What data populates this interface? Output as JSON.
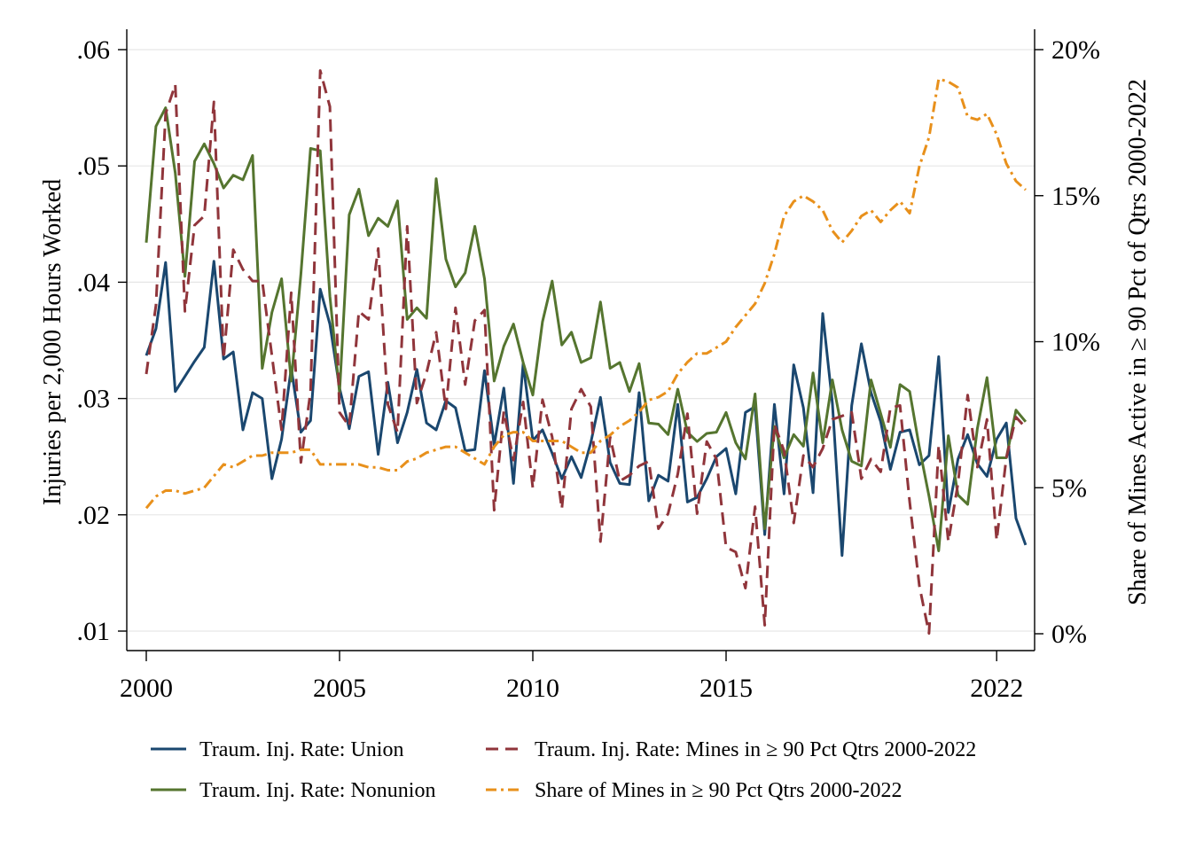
{
  "chart_data": {
    "type": "line",
    "title": "",
    "xlabel": "",
    "ylabel": "Injuries per 2,000 Hours Worked",
    "y2label": "Share of Mines Active in ≥ 90 Pct of Qtrs 2000-2022",
    "grid": true,
    "legend_position": "bottom",
    "xlim": [
      2000,
      2022.75
    ],
    "ylim": [
      0.0085,
      0.0615
    ],
    "y2lim": [
      0,
      0.2
    ],
    "x_ticks": [
      {
        "value": 2000,
        "label": "2000"
      },
      {
        "value": 2005,
        "label": "2005"
      },
      {
        "value": 2010,
        "label": "2010"
      },
      {
        "value": 2015,
        "label": "2015"
      },
      {
        "value": 2022,
        "label": "2022"
      }
    ],
    "y_ticks": [
      {
        "value": 0.01,
        "label": ".01"
      },
      {
        "value": 0.02,
        "label": ".02"
      },
      {
        "value": 0.03,
        "label": ".03"
      },
      {
        "value": 0.04,
        "label": ".04"
      },
      {
        "value": 0.05,
        "label": ".05"
      },
      {
        "value": 0.06,
        "label": ".06"
      }
    ],
    "y2_ticks": [
      {
        "value": 0.0,
        "label": "0%"
      },
      {
        "value": 0.05,
        "label": "5%"
      },
      {
        "value": 0.1,
        "label": "10%"
      },
      {
        "value": 0.15,
        "label": "15%"
      },
      {
        "value": 0.2,
        "label": "20%"
      }
    ],
    "x": [
      2000.0,
      2000.25,
      2000.5,
      2000.75,
      2001.0,
      2001.25,
      2001.5,
      2001.75,
      2002.0,
      2002.25,
      2002.5,
      2002.75,
      2003.0,
      2003.25,
      2003.5,
      2003.75,
      2004.0,
      2004.25,
      2004.5,
      2004.75,
      2005.0,
      2005.25,
      2005.5,
      2005.75,
      2006.0,
      2006.25,
      2006.5,
      2006.75,
      2007.0,
      2007.25,
      2007.5,
      2007.75,
      2008.0,
      2008.25,
      2008.5,
      2008.75,
      2009.0,
      2009.25,
      2009.5,
      2009.75,
      2010.0,
      2010.25,
      2010.5,
      2010.75,
      2011.0,
      2011.25,
      2011.5,
      2011.75,
      2012.0,
      2012.25,
      2012.5,
      2012.75,
      2013.0,
      2013.25,
      2013.5,
      2013.75,
      2014.0,
      2014.25,
      2014.5,
      2014.75,
      2015.0,
      2015.25,
      2015.5,
      2015.75,
      2016.0,
      2016.25,
      2016.5,
      2016.75,
      2017.0,
      2017.25,
      2017.5,
      2017.75,
      2018.0,
      2018.25,
      2018.5,
      2018.75,
      2019.0,
      2019.25,
      2019.5,
      2019.75,
      2020.0,
      2020.25,
      2020.5,
      2020.75,
      2021.0,
      2021.25,
      2021.5,
      2021.75,
      2022.0,
      2022.25,
      2022.5,
      2022.75
    ],
    "series": [
      {
        "name": "Traum. Inj. Rate: Union",
        "axis": "left",
        "color": "#1a476f",
        "dash": "solid",
        "values": [
          0.0337,
          0.036,
          0.0417,
          0.0306,
          0.0319,
          0.0332,
          0.0344,
          0.0418,
          0.0334,
          0.034,
          0.0273,
          0.0305,
          0.03,
          0.0231,
          0.0265,
          0.0326,
          0.0271,
          0.0281,
          0.0394,
          0.0364,
          0.0309,
          0.0274,
          0.0319,
          0.0323,
          0.0252,
          0.0314,
          0.0262,
          0.0288,
          0.0325,
          0.0279,
          0.0273,
          0.0298,
          0.0292,
          0.0255,
          0.0256,
          0.0324,
          0.026,
          0.0309,
          0.0227,
          0.033,
          0.0264,
          0.0273,
          0.0253,
          0.0231,
          0.025,
          0.0232,
          0.0262,
          0.0301,
          0.0245,
          0.0227,
          0.0226,
          0.0305,
          0.0212,
          0.0234,
          0.0229,
          0.0295,
          0.0211,
          0.0215,
          0.0231,
          0.025,
          0.0257,
          0.0218,
          0.0288,
          0.0293,
          0.0183,
          0.0295,
          0.0218,
          0.0329,
          0.0292,
          0.0219,
          0.0373,
          0.0296,
          0.0165,
          0.0294,
          0.0347,
          0.0305,
          0.028,
          0.0239,
          0.0271,
          0.0273,
          0.0243,
          0.0251,
          0.0336,
          0.0202,
          0.0248,
          0.0269,
          0.0244,
          0.0233,
          0.0265,
          0.0279,
          0.0197,
          0.0174
        ]
      },
      {
        "name": "Traum. Inj. Rate: Nonunion",
        "axis": "left",
        "color": "#55752f",
        "dash": "solid",
        "values": [
          0.0434,
          0.0534,
          0.055,
          0.0494,
          0.0405,
          0.0504,
          0.0519,
          0.0502,
          0.0481,
          0.0492,
          0.0488,
          0.0509,
          0.0326,
          0.0374,
          0.0403,
          0.0315,
          0.0407,
          0.0515,
          0.0513,
          0.0388,
          0.0305,
          0.0458,
          0.048,
          0.044,
          0.0455,
          0.0448,
          0.047,
          0.0368,
          0.0378,
          0.0369,
          0.0489,
          0.042,
          0.0396,
          0.0408,
          0.0448,
          0.0403,
          0.0315,
          0.0345,
          0.0364,
          0.0331,
          0.0303,
          0.0366,
          0.0401,
          0.0346,
          0.0357,
          0.0331,
          0.0335,
          0.0383,
          0.0326,
          0.0331,
          0.0306,
          0.033,
          0.0279,
          0.0278,
          0.0269,
          0.0308,
          0.0271,
          0.0263,
          0.027,
          0.0271,
          0.0288,
          0.0262,
          0.0248,
          0.0304,
          0.0188,
          0.0276,
          0.0249,
          0.0269,
          0.0259,
          0.0322,
          0.0262,
          0.0316,
          0.0273,
          0.0246,
          0.0242,
          0.0316,
          0.0287,
          0.0258,
          0.0312,
          0.0306,
          0.0258,
          0.0216,
          0.0169,
          0.0268,
          0.0217,
          0.0209,
          0.0274,
          0.0318,
          0.0249,
          0.0249,
          0.029,
          0.028
        ]
      },
      {
        "name": "Traum. Inj. Rate: Mines in ≥ 90 Pct Qtrs 2000-2022",
        "axis": "left",
        "color": "#90353b",
        "dash": "dashed",
        "values": [
          0.0321,
          0.038,
          0.0545,
          0.057,
          0.0375,
          0.0449,
          0.0457,
          0.0555,
          0.0334,
          0.0428,
          0.0411,
          0.0401,
          0.0401,
          0.0337,
          0.0273,
          0.0391,
          0.0245,
          0.0306,
          0.0582,
          0.0551,
          0.0288,
          0.0276,
          0.0375,
          0.0368,
          0.0429,
          0.0295,
          0.0271,
          0.0448,
          0.0296,
          0.0322,
          0.0357,
          0.0291,
          0.0378,
          0.0312,
          0.0367,
          0.0376,
          0.0204,
          0.0289,
          0.0247,
          0.0297,
          0.0223,
          0.0299,
          0.0267,
          0.0205,
          0.0291,
          0.0308,
          0.0293,
          0.0177,
          0.0267,
          0.0229,
          0.0234,
          0.0242,
          0.0246,
          0.0188,
          0.0201,
          0.0235,
          0.0287,
          0.0201,
          0.0263,
          0.0248,
          0.0172,
          0.0168,
          0.0137,
          0.0207,
          0.0105,
          0.0278,
          0.0255,
          0.0193,
          0.0251,
          0.0241,
          0.0257,
          0.0282,
          0.0285,
          0.0288,
          0.0231,
          0.0248,
          0.0237,
          0.0292,
          0.0294,
          0.0211,
          0.0139,
          0.0098,
          0.026,
          0.0177,
          0.0227,
          0.0303,
          0.0241,
          0.0282,
          0.0178,
          0.0249,
          0.0284,
          0.0275
        ]
      },
      {
        "name": "Share of Mines in ≥ 90 Pct Qtrs 2000-2022",
        "axis": "right",
        "color": "#e8901b",
        "dash": "dashdot",
        "values": [
          0.043,
          0.047,
          0.049,
          0.049,
          0.048,
          0.049,
          0.05,
          0.054,
          0.058,
          0.057,
          0.059,
          0.061,
          0.061,
          0.062,
          0.062,
          0.062,
          0.063,
          0.063,
          0.058,
          0.058,
          0.058,
          0.058,
          0.058,
          0.057,
          0.057,
          0.056,
          0.056,
          0.059,
          0.06,
          0.062,
          0.063,
          0.064,
          0.064,
          0.062,
          0.06,
          0.058,
          0.064,
          0.068,
          0.069,
          0.069,
          0.066,
          0.066,
          0.066,
          0.066,
          0.064,
          0.062,
          0.062,
          0.066,
          0.068,
          0.071,
          0.073,
          0.076,
          0.08,
          0.081,
          0.083,
          0.089,
          0.093,
          0.096,
          0.096,
          0.098,
          0.1,
          0.105,
          0.109,
          0.113,
          0.12,
          0.13,
          0.143,
          0.148,
          0.15,
          0.148,
          0.145,
          0.138,
          0.134,
          0.138,
          0.143,
          0.145,
          0.141,
          0.145,
          0.148,
          0.144,
          0.16,
          0.17,
          0.19,
          0.189,
          0.187,
          0.177,
          0.176,
          0.178,
          0.171,
          0.161,
          0.155,
          0.152
        ]
      }
    ]
  }
}
